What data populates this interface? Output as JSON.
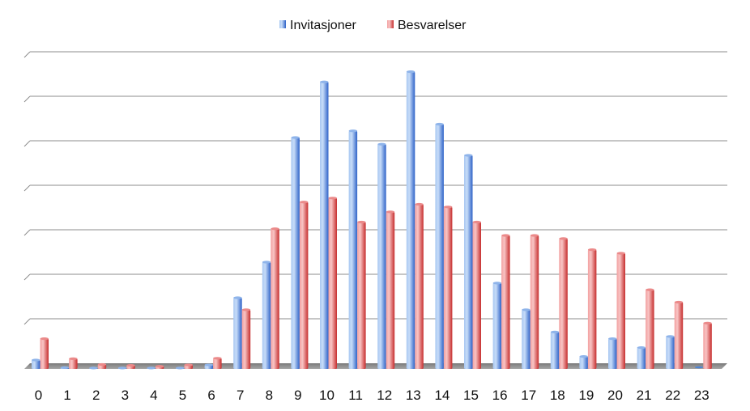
{
  "chart_data": {
    "type": "bar",
    "categories": [
      "0",
      "1",
      "2",
      "3",
      "4",
      "5",
      "6",
      "7",
      "8",
      "9",
      "10",
      "11",
      "12",
      "13",
      "14",
      "15",
      "16",
      "17",
      "18",
      "19",
      "20",
      "21",
      "22",
      "23"
    ],
    "series": [
      {
        "name": "Invitasjoner",
        "color": "#4f86d6",
        "values": [
          2.0,
          0.3,
          0.2,
          0.2,
          0.2,
          0.2,
          0.9,
          16.0,
          24.0,
          52.0,
          64.5,
          53.5,
          50.5,
          66.8,
          55.0,
          48.0,
          19.3,
          13.3,
          8.3,
          2.8,
          6.8,
          4.8,
          7.3,
          0.0
        ]
      },
      {
        "name": "Besvarelser",
        "color": "#e05555",
        "values": [
          6.8,
          2.3,
          1.0,
          0.8,
          0.6,
          0.9,
          2.4,
          13.3,
          31.5,
          37.5,
          38.4,
          33.0,
          35.3,
          37.0,
          36.4,
          33.0,
          30.0,
          30.0,
          29.3,
          26.8,
          26.0,
          17.8,
          15.0,
          10.3
        ]
      }
    ],
    "ylim": [
      0,
      70
    ],
    "grid": true,
    "legend": "top-center"
  }
}
